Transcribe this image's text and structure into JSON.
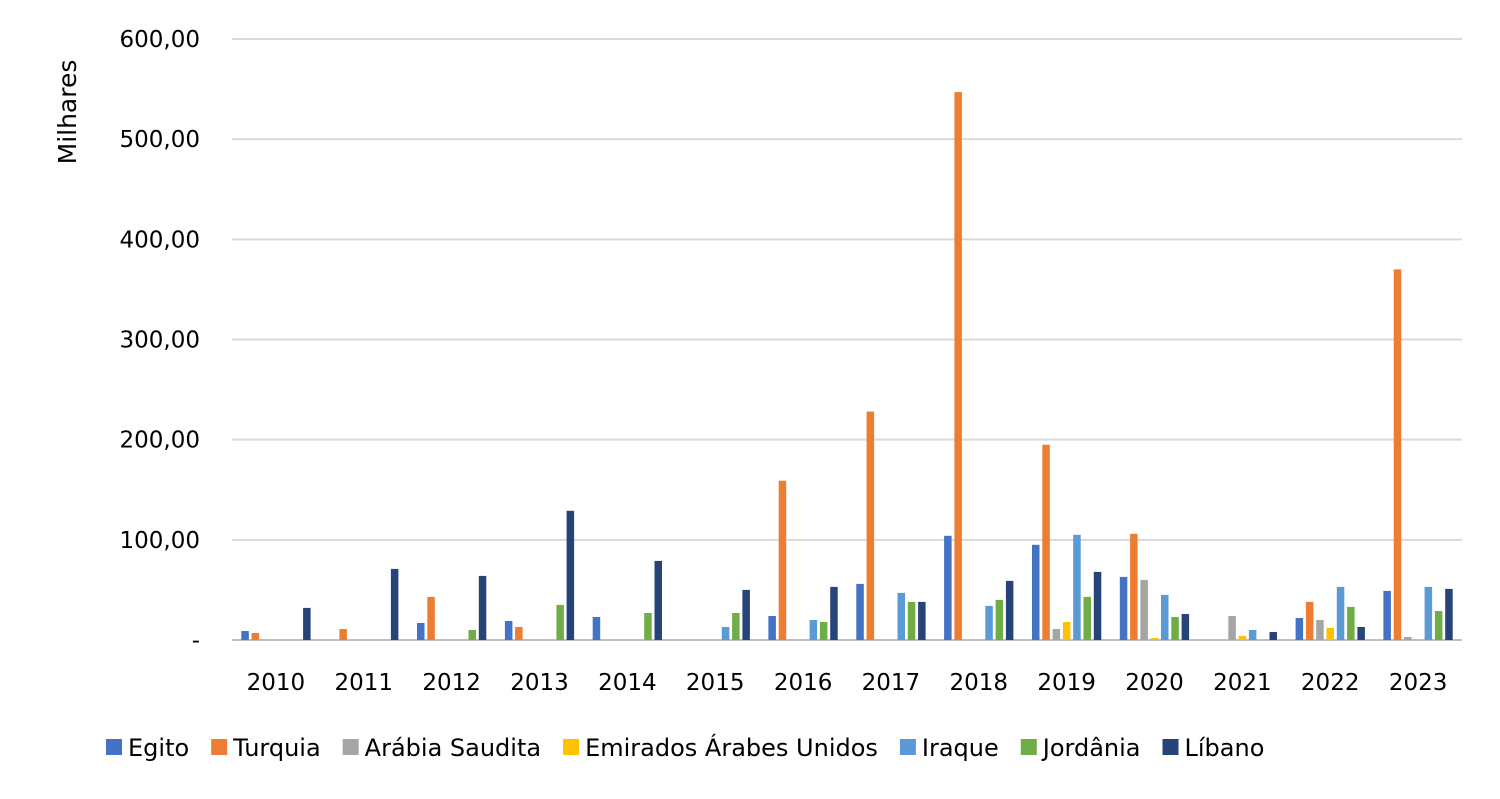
{
  "chart_data": {
    "type": "bar",
    "ylabel": "Milhares",
    "ylim": [
      0,
      600
    ],
    "y_ticks": [
      0,
      100,
      200,
      300,
      400,
      500,
      600
    ],
    "y_tick_labels": [
      "-",
      "100,00",
      "200,00",
      "300,00",
      "400,00",
      "500,00",
      "600,00"
    ],
    "grid": true,
    "legend_position": "bottom",
    "categories": [
      "2010",
      "2011",
      "2012",
      "2013",
      "2014",
      "2015",
      "2016",
      "2017",
      "2018",
      "2019",
      "2020",
      "2021",
      "2022",
      "2023"
    ],
    "series": [
      {
        "name": "Egito",
        "color": "#4472C4",
        "values": [
          9,
          0,
          17,
          19,
          23,
          0,
          24,
          56,
          104,
          95,
          63,
          0,
          22,
          49
        ]
      },
      {
        "name": "Turquia",
        "color": "#ED7D31",
        "values": [
          7,
          11,
          43,
          13,
          0,
          0,
          159,
          228,
          547,
          195,
          106,
          0,
          38,
          370
        ]
      },
      {
        "name": "Arábia Saudita",
        "color": "#A5A5A5",
        "values": [
          0,
          0,
          0,
          0,
          0,
          0,
          0,
          0,
          0,
          11,
          60,
          24,
          20,
          3
        ]
      },
      {
        "name": "Emirados Árabes Unidos",
        "color": "#FFC000",
        "values": [
          0,
          0,
          0,
          0,
          0,
          0,
          0,
          0,
          0,
          18,
          2,
          4,
          12,
          0
        ]
      },
      {
        "name": "Iraque",
        "color": "#5B9BD5",
        "values": [
          0,
          0,
          0,
          0,
          0,
          13,
          20,
          47,
          34,
          105,
          45,
          10,
          53,
          53
        ]
      },
      {
        "name": "Jordânia",
        "color": "#70AD47",
        "values": [
          0,
          0,
          10,
          35,
          27,
          27,
          18,
          38,
          40,
          43,
          23,
          0,
          33,
          29
        ]
      },
      {
        "name": "Líbano",
        "color": "#264478",
        "values": [
          32,
          71,
          64,
          129,
          79,
          50,
          53,
          38,
          59,
          68,
          26,
          8,
          13,
          51
        ]
      }
    ]
  }
}
